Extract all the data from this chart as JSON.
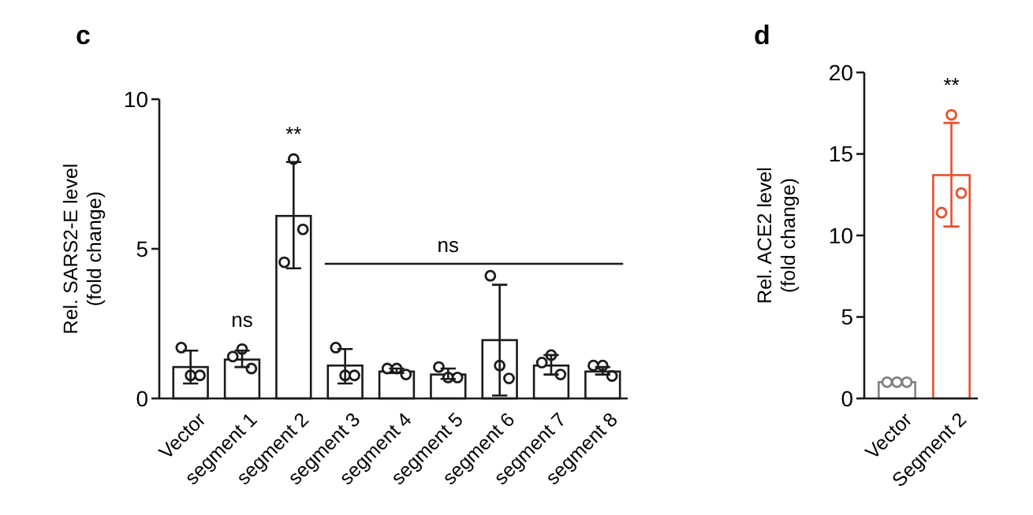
{
  "chart_data": [
    {
      "type": "bar",
      "title": "c",
      "ylabel": "Rel. SARS2-E level\n(fold change)",
      "categories": [
        "Vector",
        "segment 1",
        "segment 2",
        "segment 3",
        "segment 4",
        "segment 5",
        "segment 6",
        "segment 7",
        "segment 8"
      ],
      "series": [
        {
          "type": "bar",
          "color": "#1a1a1a",
          "values": [
            1.05,
            1.3,
            6.1,
            1.1,
            0.9,
            0.8,
            1.95,
            1.1,
            0.9
          ],
          "errors": [
            [
              0.5,
              1.6
            ],
            [
              1.05,
              1.6
            ],
            [
              4.35,
              7.9
            ],
            [
              0.5,
              1.65
            ],
            [
              0.85,
              1.0
            ],
            [
              0.65,
              1.0
            ],
            1.85,
            [
              0.8,
              1.45
            ],
            [
              0.8,
              1.05
            ]
          ]
        },
        {
          "type": "scatter",
          "color": "#1a1a1a",
          "marker": "circle",
          "x": [
            "Vector",
            "Vector",
            "Vector",
            "segment 1",
            "segment 1",
            "segment 1",
            "segment 2",
            "segment 2",
            "segment 2",
            "segment 3",
            "segment 3",
            "segment 3",
            "segment 4",
            "segment 4",
            "segment 4",
            "segment 5",
            "segment 5",
            "segment 5",
            "segment 6",
            "segment 6",
            "segment 6",
            "segment 7",
            "segment 7",
            "segment 7",
            "segment 8",
            "segment 8",
            "segment 8"
          ],
          "values": [
            1.7,
            0.77,
            0.77,
            1.4,
            1.65,
            1.0,
            4.55,
            8.0,
            5.65,
            1.7,
            0.77,
            0.77,
            1.0,
            1.0,
            0.8,
            1.05,
            0.7,
            0.7,
            4.1,
            1.1,
            0.67,
            1.2,
            1.45,
            0.8,
            1.1,
            1.1,
            0.75
          ]
        }
      ],
      "ylim": [
        0,
        10
      ],
      "yticks": [
        0,
        5,
        10
      ],
      "grid": false,
      "annotations": [
        "ns",
        "**",
        "ns"
      ]
    },
    {
      "type": "bar",
      "title": "d",
      "ylabel": "Rel. ACE2 level\n(fold change)",
      "categories": [
        "Vector",
        "Segment 2"
      ],
      "series": [
        {
          "type": "bar",
          "colors": [
            "#808080",
            "#e8502e"
          ],
          "values": [
            1.0,
            13.7
          ],
          "errors": [
            null,
            [
              10.55,
              16.9
            ]
          ]
        },
        {
          "type": "scatter",
          "colors": [
            "#808080",
            "#808080",
            "#808080",
            "#e8502e",
            "#e8502e",
            "#e8502e"
          ],
          "marker": "circle",
          "x": [
            "Vector",
            "Vector",
            "Vector",
            "Segment 2",
            "Segment 2",
            "Segment 2"
          ],
          "values": [
            1.0,
            1.0,
            1.0,
            11.4,
            17.4,
            12.6
          ]
        }
      ],
      "ylim": [
        0,
        20
      ],
      "yticks": [
        0,
        5,
        10,
        15,
        20
      ],
      "grid": false,
      "annotations": [
        "**"
      ]
    }
  ]
}
